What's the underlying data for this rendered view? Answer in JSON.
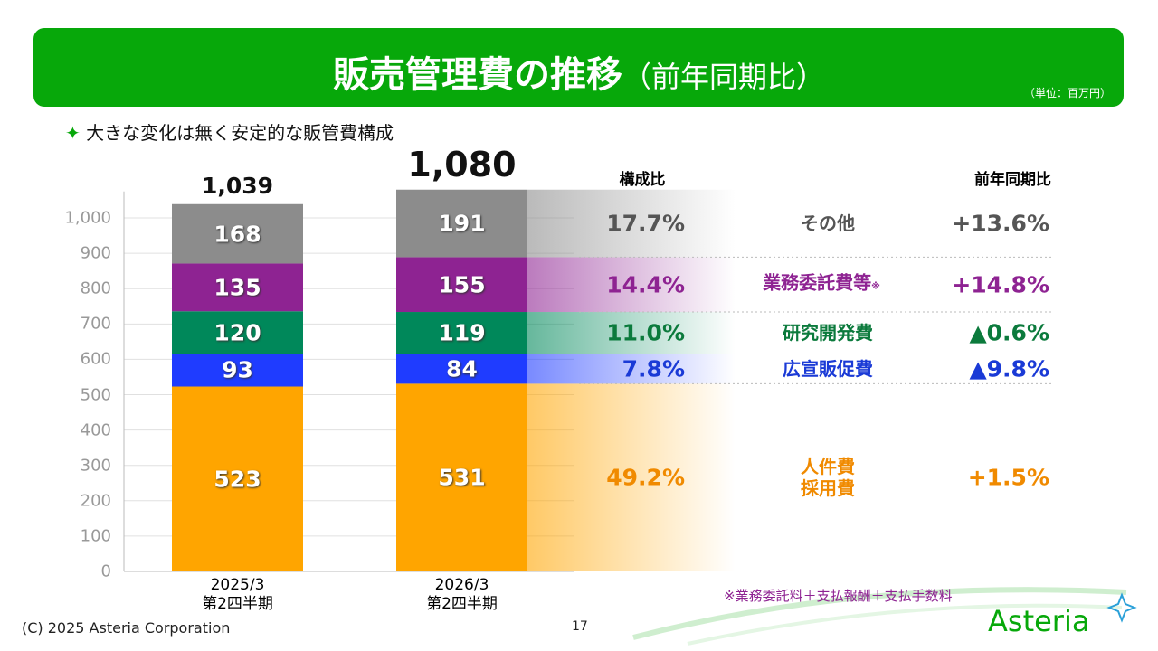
{
  "header": {
    "title": "販売管理費の推移",
    "title_note": "（前年同期比）",
    "unit": "（単位：百万円）"
  },
  "subtitle": "大きな変化は無く安定的な販管費構成",
  "chart_data": {
    "type": "stacked_bar",
    "categories": [
      "2025/3\n第2四半期",
      "2026/3\n第2四半期"
    ],
    "series": [
      {
        "name": "人件費\n採用費",
        "color": "#ffa500",
        "text_color": "#f08a00",
        "values": [
          523,
          531
        ],
        "share": "49.2%",
        "yoy": "+1.5%"
      },
      {
        "name": "広宣販促費",
        "color": "#1f3cff",
        "text_color": "#1a3ad6",
        "values": [
          93,
          84
        ],
        "share": "7.8%",
        "yoy": "▲9.8%"
      },
      {
        "name": "研究開発費",
        "color": "#00885a",
        "text_color": "#0b7a3c",
        "values": [
          120,
          119
        ],
        "share": "11.0%",
        "yoy": "▲0.6%"
      },
      {
        "name": "業務委託費等",
        "name_note": "※",
        "color": "#8e2392",
        "text_color": "#8e2392",
        "values": [
          135,
          155
        ],
        "share": "14.4%",
        "yoy": "+14.8%"
      },
      {
        "name": "その他",
        "color": "#8c8c8c",
        "text_color": "#555555",
        "values": [
          168,
          191
        ],
        "share": "17.7%",
        "yoy": "+13.6%"
      }
    ],
    "totals": [
      1039,
      1080
    ],
    "total_labels": [
      "1,039",
      "1,080"
    ],
    "ylim": [
      0,
      1075
    ],
    "yticks": [
      0,
      100,
      200,
      300,
      400,
      500,
      600,
      700,
      800,
      900,
      {
        "value": 1000,
        "label": "1,000"
      }
    ],
    "grid": true,
    "share_header": "構成比",
    "yoy_header": "前年同期比",
    "footnote": "※業務委託料＋支払報酬＋支払手数料"
  },
  "footer": {
    "copyright": "(C) 2025 Asteria Corporation",
    "page": 17,
    "logo": "Asteria"
  }
}
